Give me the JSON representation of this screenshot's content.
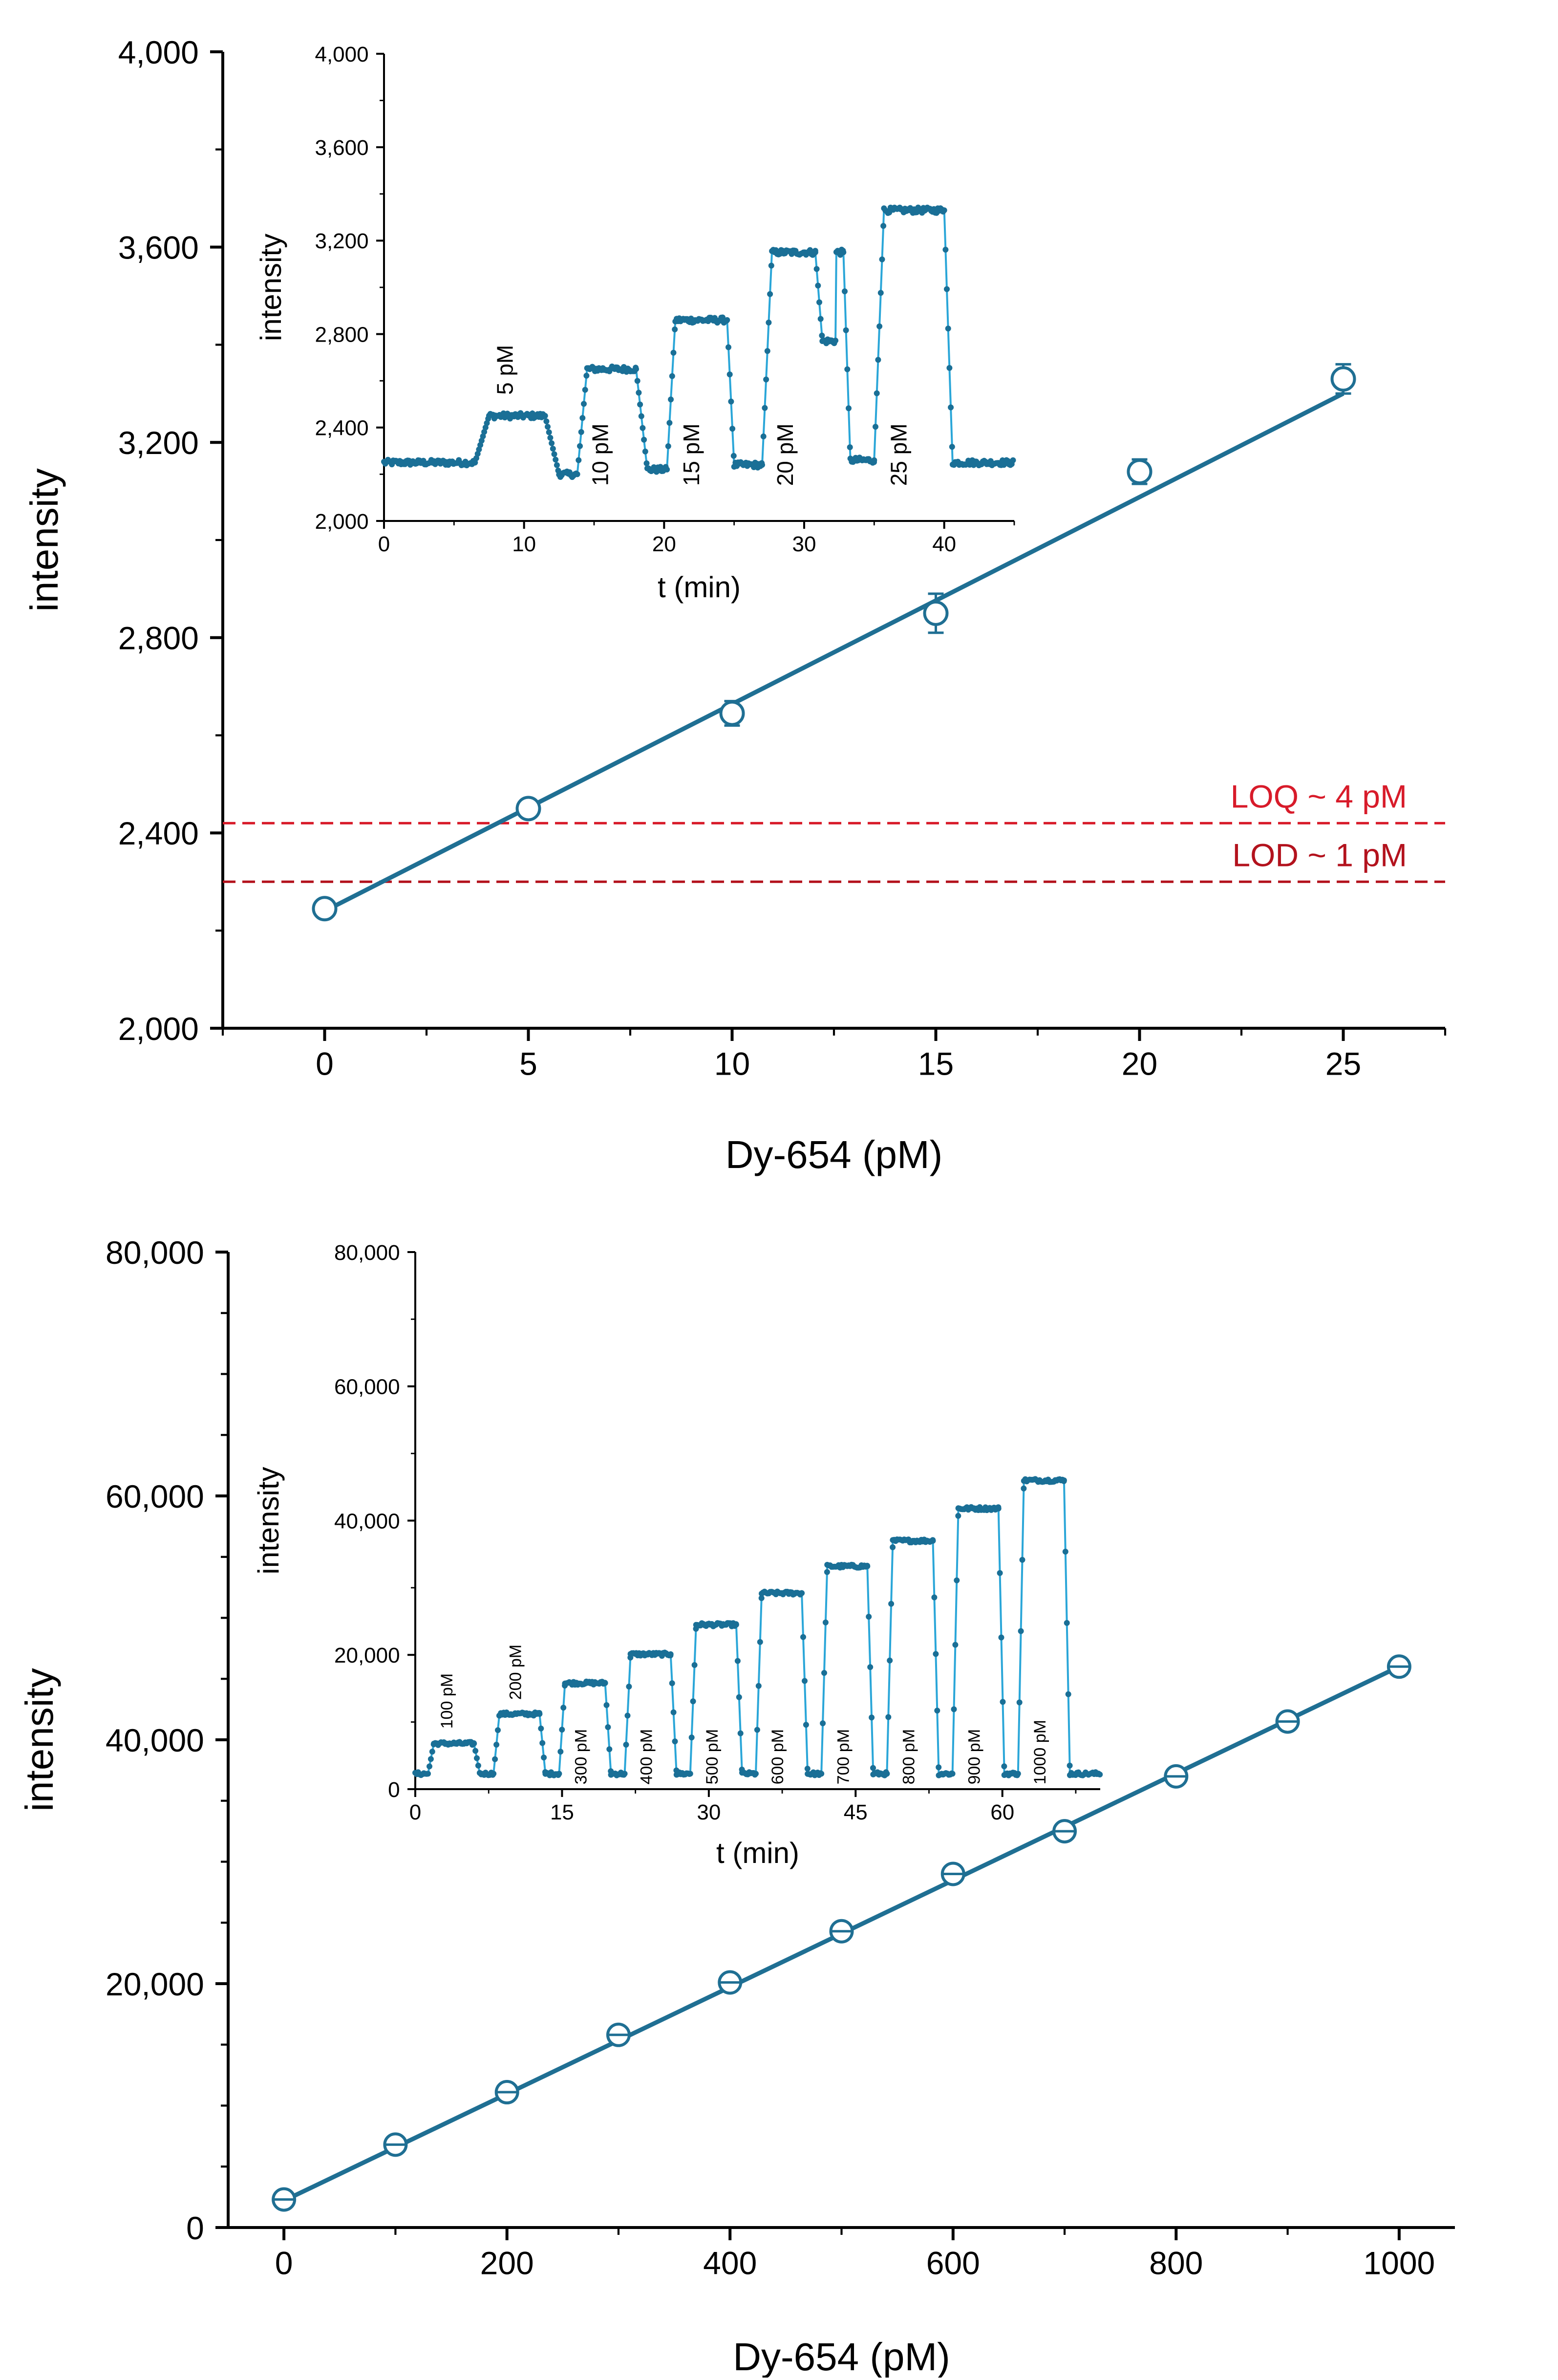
{
  "colors": {
    "main_series": "#1f6f93",
    "inset_series_line": "#2aa6d8",
    "inset_series_marker": "#1a6f96",
    "loq_line": "#d81b2a",
    "lod_line": "#b3121d",
    "axis": "#000000",
    "background": "#ffffff"
  },
  "chart_data": [
    {
      "type": "scatter",
      "panel": "top-main",
      "xlabel": "Dy-654 (pM)",
      "ylabel": "intensity",
      "xlim": [
        -2.5,
        27.5
      ],
      "ylim": [
        2000,
        4000
      ],
      "x_ticks": [
        0,
        5,
        10,
        15,
        20,
        25
      ],
      "x_tick_labels": [
        "0",
        "5",
        "10",
        "15",
        "20",
        "25"
      ],
      "y_ticks": [
        2000,
        2400,
        2800,
        3200,
        3600,
        4000
      ],
      "y_tick_labels": [
        "2,000",
        "2,400",
        "2,800",
        "3,200",
        "3,600",
        "4,000"
      ],
      "x_minor_step": 2.5,
      "y_minor_step": 200,
      "points": {
        "x": [
          0,
          5,
          10,
          15,
          20,
          25
        ],
        "y": [
          2245,
          2450,
          2645,
          2850,
          3140,
          3330
        ],
        "err": [
          15,
          15,
          25,
          40,
          25,
          30
        ]
      },
      "fit": {
        "x0": 0,
        "x1": 25,
        "y0": 2240,
        "y1": 3300
      },
      "reference_lines": [
        {
          "name": "LOQ",
          "y": 2420,
          "label": "LOQ ~ 4 pM"
        },
        {
          "name": "LOD",
          "y": 2300,
          "label": "LOD ~ 1 pM"
        }
      ],
      "inset": {
        "type": "line",
        "xlabel": "t (min)",
        "ylabel": "intensity",
        "xlim": [
          0,
          45
        ],
        "ylim": [
          2000,
          4000
        ],
        "x_ticks": [
          0,
          10,
          20,
          30,
          40
        ],
        "x_tick_labels": [
          "0",
          "10",
          "20",
          "30",
          "40"
        ],
        "y_ticks": [
          2000,
          2400,
          2800,
          3200,
          3600,
          4000
        ],
        "y_tick_labels": [
          "2,000",
          "2,400",
          "2,800",
          "3,200",
          "3,600",
          "4,000"
        ],
        "x_minor_step": 5,
        "y_minor_step": 200,
        "baseline": 2250,
        "noise": 12,
        "segments": [
          {
            "t0": 0,
            "t1": 6.5,
            "level": 2250
          },
          {
            "t0": 6.5,
            "t1": 7.5,
            "level": "ramp"
          },
          {
            "t0": 7.5,
            "t1": 11.5,
            "level": 2450
          },
          {
            "t0": 11.5,
            "t1": 12.5,
            "level": "ramp"
          },
          {
            "t0": 12.5,
            "t1": 13.8,
            "level": 2200
          },
          {
            "t0": 13.8,
            "t1": 14.5,
            "level": "ramp"
          },
          {
            "t0": 14.5,
            "t1": 18,
            "level": 2650
          },
          {
            "t0": 18,
            "t1": 18.8,
            "level": "ramp"
          },
          {
            "t0": 18.8,
            "t1": 20.2,
            "level": 2220
          },
          {
            "t0": 20.2,
            "t1": 20.8,
            "level": "ramp"
          },
          {
            "t0": 20.8,
            "t1": 24.5,
            "level": 2860
          },
          {
            "t0": 24.5,
            "t1": 25,
            "level": "ramp"
          },
          {
            "t0": 25,
            "t1": 27,
            "level": 2240
          },
          {
            "t0": 27,
            "t1": 27.7,
            "level": "ramp"
          },
          {
            "t0": 27.7,
            "t1": 30.8,
            "level": 3150
          },
          {
            "t0": 30.8,
            "t1": 31.3,
            "level": "ramp"
          },
          {
            "t0": 31.3,
            "t1": 32.3,
            "level": 2770
          },
          {
            "t0": 32.3,
            "t1": 32.8,
            "level": 3150
          },
          {
            "t0": 32.8,
            "t1": 33.3,
            "level": "ramp"
          },
          {
            "t0": 33.3,
            "t1": 35,
            "level": 2260
          },
          {
            "t0": 35,
            "t1": 35.7,
            "level": "ramp"
          },
          {
            "t0": 35.7,
            "t1": 40,
            "level": 3330
          },
          {
            "t0": 40,
            "t1": 40.6,
            "level": "ramp"
          },
          {
            "t0": 40.6,
            "t1": 45,
            "level": 2250
          }
        ],
        "annotations": [
          {
            "text": "5 pM",
            "t": 9.2,
            "y": 2540
          },
          {
            "text": "10 pM",
            "t": 16,
            "y": 2150
          },
          {
            "text": "15 pM",
            "t": 22.5,
            "y": 2150
          },
          {
            "text": "20 pM",
            "t": 29.2,
            "y": 2150
          },
          {
            "text": "25 pM",
            "t": 37.3,
            "y": 2150
          }
        ]
      }
    },
    {
      "type": "scatter",
      "panel": "bottom-main",
      "xlabel": "Dy-654 (pM)",
      "ylabel": "intensity",
      "xlim": [
        -50,
        1050
      ],
      "ylim": [
        0,
        80000
      ],
      "x_ticks": [
        0,
        200,
        400,
        600,
        800,
        1000
      ],
      "x_tick_labels": [
        "0",
        "200",
        "400",
        "600",
        "800",
        "1000"
      ],
      "y_ticks": [
        0,
        20000,
        40000,
        60000,
        80000
      ],
      "y_tick_labels": [
        "0",
        "20,000",
        "40,000",
        "60,000",
        "80,000"
      ],
      "x_minor_step": 100,
      "y_minor_step": 5000,
      "points": {
        "x": [
          0,
          100,
          200,
          300,
          400,
          500,
          600,
          700,
          800,
          900,
          1000
        ],
        "y": [
          2300,
          6800,
          11100,
          15800,
          20100,
          24300,
          29000,
          32500,
          37000,
          41500,
          46000
        ],
        "err": [
          300,
          300,
          300,
          300,
          300,
          300,
          300,
          300,
          300,
          300,
          300
        ]
      },
      "fit": {
        "x0": 0,
        "x1": 1000,
        "y0": 2200,
        "y1": 46000
      },
      "inset": {
        "type": "line",
        "xlabel": "t (min)",
        "ylabel": "intensity",
        "xlim": [
          0,
          70
        ],
        "ylim": [
          0,
          80000
        ],
        "x_ticks": [
          0,
          15,
          30,
          45,
          60
        ],
        "x_tick_labels": [
          "0",
          "15",
          "30",
          "45",
          "60"
        ],
        "y_ticks": [
          0,
          20000,
          40000,
          60000,
          80000
        ],
        "y_tick_labels": [
          "0",
          "20,000",
          "40,000",
          "60,000",
          "80,000"
        ],
        "x_minor_step": 7.5,
        "y_minor_step": 10000,
        "baseline": 2300,
        "noise": 250,
        "segments": [
          {
            "t0": 0,
            "t1": 1.3,
            "level": 2300
          },
          {
            "t0": 1.3,
            "t1": 1.9,
            "level": "ramp"
          },
          {
            "t0": 1.9,
            "t1": 6.0,
            "level": 6800
          },
          {
            "t0": 6.0,
            "t1": 6.6,
            "level": "ramp"
          },
          {
            "t0": 6.6,
            "t1": 8.0,
            "level": 2300
          },
          {
            "t0": 8.0,
            "t1": 8.6,
            "level": "ramp"
          },
          {
            "t0": 8.6,
            "t1": 12.7,
            "level": 11200
          },
          {
            "t0": 12.7,
            "t1": 13.3,
            "level": "ramp"
          },
          {
            "t0": 13.3,
            "t1": 14.7,
            "level": 2300
          },
          {
            "t0": 14.7,
            "t1": 15.3,
            "level": "ramp"
          },
          {
            "t0": 15.3,
            "t1": 19.4,
            "level": 15800
          },
          {
            "t0": 19.4,
            "t1": 20.0,
            "level": "ramp"
          },
          {
            "t0": 20.0,
            "t1": 21.4,
            "level": 2300
          },
          {
            "t0": 21.4,
            "t1": 22.0,
            "level": "ramp"
          },
          {
            "t0": 22.0,
            "t1": 26.1,
            "level": 20100
          },
          {
            "t0": 26.1,
            "t1": 26.7,
            "level": "ramp"
          },
          {
            "t0": 26.7,
            "t1": 28.1,
            "level": 2300
          },
          {
            "t0": 28.1,
            "t1": 28.7,
            "level": "ramp"
          },
          {
            "t0": 28.7,
            "t1": 32.8,
            "level": 24500
          },
          {
            "t0": 32.8,
            "t1": 33.4,
            "level": "ramp"
          },
          {
            "t0": 33.4,
            "t1": 34.8,
            "level": 2300
          },
          {
            "t0": 34.8,
            "t1": 35.4,
            "level": "ramp"
          },
          {
            "t0": 35.4,
            "t1": 39.5,
            "level": 29200
          },
          {
            "t0": 39.5,
            "t1": 40.1,
            "level": "ramp"
          },
          {
            "t0": 40.1,
            "t1": 41.5,
            "level": 2300
          },
          {
            "t0": 41.5,
            "t1": 42.1,
            "level": "ramp"
          },
          {
            "t0": 42.1,
            "t1": 46.2,
            "level": 33200
          },
          {
            "t0": 46.2,
            "t1": 46.8,
            "level": "ramp"
          },
          {
            "t0": 46.8,
            "t1": 48.2,
            "level": 2300
          },
          {
            "t0": 48.2,
            "t1": 48.8,
            "level": "ramp"
          },
          {
            "t0": 48.8,
            "t1": 52.9,
            "level": 37000
          },
          {
            "t0": 52.9,
            "t1": 53.5,
            "level": "ramp"
          },
          {
            "t0": 53.5,
            "t1": 54.9,
            "level": 2300
          },
          {
            "t0": 54.9,
            "t1": 55.5,
            "level": "ramp"
          },
          {
            "t0": 55.5,
            "t1": 59.6,
            "level": 41800
          },
          {
            "t0": 59.6,
            "t1": 60.2,
            "level": "ramp"
          },
          {
            "t0": 60.2,
            "t1": 61.6,
            "level": 2300
          },
          {
            "t0": 61.6,
            "t1": 62.2,
            "level": "ramp"
          },
          {
            "t0": 62.2,
            "t1": 66.3,
            "level": 46000
          },
          {
            "t0": 66.3,
            "t1": 66.9,
            "level": "ramp"
          },
          {
            "t0": 66.9,
            "t1": 70,
            "level": 2300
          }
        ],
        "annotations": [
          {
            "text": "100 pM",
            "t": 3.8,
            "y": 9000
          },
          {
            "text": "200 pM",
            "t": 10.8,
            "y": 13300
          },
          {
            "text": "300 pM",
            "t": 17.5,
            "y": 700
          },
          {
            "text": "400 pM",
            "t": 24.2,
            "y": 700
          },
          {
            "text": "500 pM",
            "t": 30.9,
            "y": 700
          },
          {
            "text": "600 pM",
            "t": 37.6,
            "y": 700
          },
          {
            "text": "700 pM",
            "t": 44.3,
            "y": 700
          },
          {
            "text": "800 pM",
            "t": 51.0,
            "y": 700
          },
          {
            "text": "900 pM",
            "t": 57.7,
            "y": 700
          },
          {
            "text": "1000 pM",
            "t": 64.4,
            "y": 700
          }
        ]
      }
    }
  ]
}
